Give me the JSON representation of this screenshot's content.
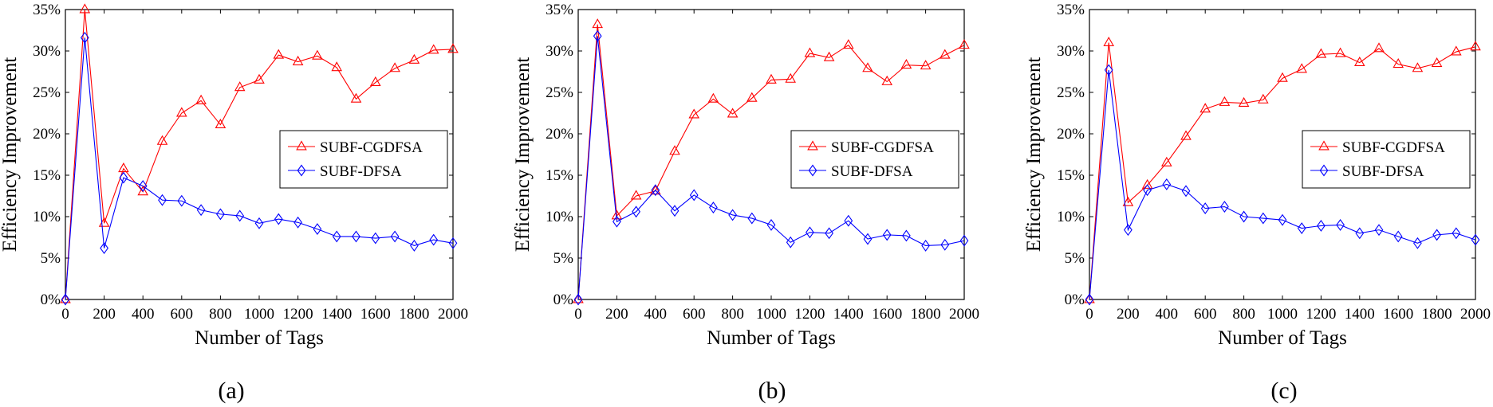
{
  "chart_data": [
    {
      "type": "line",
      "panel_label": "(a)",
      "xlabel": "Number of Tags",
      "ylabel": "Efficiency Improvement",
      "xlim": [
        0,
        2000
      ],
      "ylim": [
        0,
        35
      ],
      "xticks": [
        0,
        200,
        400,
        600,
        800,
        1000,
        1200,
        1400,
        1600,
        1800,
        2000
      ],
      "yticks": [
        0,
        5,
        10,
        15,
        20,
        25,
        30,
        35
      ],
      "ytick_labels": [
        "0%",
        "5%",
        "10%",
        "15%",
        "20%",
        "25%",
        "30%",
        "35%"
      ],
      "grid": false,
      "legend_position": "right-center",
      "x": [
        0,
        100,
        200,
        300,
        400,
        500,
        600,
        700,
        800,
        900,
        1000,
        1100,
        1200,
        1300,
        1400,
        1500,
        1600,
        1700,
        1800,
        1900,
        2000
      ],
      "series": [
        {
          "name": "SUBF-CGDFSA",
          "color": "#ff0000",
          "marker": "triangle",
          "values": [
            0,
            35,
            9.2,
            15.8,
            13.0,
            19.1,
            22.5,
            24.0,
            21.1,
            25.6,
            26.5,
            29.5,
            28.7,
            29.4,
            28.0,
            24.2,
            26.2,
            27.9,
            28.9,
            30.1,
            30.2
          ]
        },
        {
          "name": "SUBF-DFSA",
          "color": "#0000ff",
          "marker": "diamond",
          "values": [
            0,
            31.6,
            6.2,
            14.7,
            13.7,
            12.0,
            11.9,
            10.8,
            10.3,
            10.1,
            9.2,
            9.7,
            9.3,
            8.5,
            7.6,
            7.6,
            7.4,
            7.6,
            6.5,
            7.2,
            6.8
          ]
        }
      ]
    },
    {
      "type": "line",
      "panel_label": "(b)",
      "xlabel": "Number of Tags",
      "ylabel": "Efficiency Improvement",
      "xlim": [
        0,
        2000
      ],
      "ylim": [
        0,
        35
      ],
      "xticks": [
        0,
        200,
        400,
        600,
        800,
        1000,
        1200,
        1400,
        1600,
        1800,
        2000
      ],
      "yticks": [
        0,
        5,
        10,
        15,
        20,
        25,
        30,
        35
      ],
      "ytick_labels": [
        "0%",
        "5%",
        "10%",
        "15%",
        "20%",
        "25%",
        "30%",
        "35%"
      ],
      "grid": false,
      "legend_position": "right-center",
      "x": [
        0,
        100,
        200,
        300,
        400,
        500,
        600,
        700,
        800,
        900,
        1000,
        1100,
        1200,
        1300,
        1400,
        1500,
        1600,
        1700,
        1800,
        1900,
        2000
      ],
      "series": [
        {
          "name": "SUBF-CGDFSA",
          "color": "#ff0000",
          "marker": "triangle",
          "values": [
            0,
            33.2,
            10.1,
            12.5,
            13.1,
            17.9,
            22.3,
            24.2,
            22.4,
            24.3,
            26.5,
            26.6,
            29.7,
            29.2,
            30.7,
            27.9,
            26.3,
            28.3,
            28.2,
            29.5,
            30.7
          ]
        },
        {
          "name": "SUBF-DFSA",
          "color": "#0000ff",
          "marker": "diamond",
          "values": [
            0,
            31.8,
            9.4,
            10.6,
            13.2,
            10.7,
            12.6,
            11.1,
            10.2,
            9.8,
            9.0,
            6.9,
            8.1,
            8.0,
            9.5,
            7.3,
            7.8,
            7.7,
            6.5,
            6.6,
            7.1
          ]
        }
      ]
    },
    {
      "type": "line",
      "panel_label": "(c)",
      "xlabel": "Number of Tags",
      "ylabel": "Efficiency Improvement",
      "xlim": [
        0,
        2000
      ],
      "ylim": [
        0,
        35
      ],
      "xticks": [
        0,
        200,
        400,
        600,
        800,
        1000,
        1200,
        1400,
        1600,
        1800,
        2000
      ],
      "yticks": [
        0,
        5,
        10,
        15,
        20,
        25,
        30,
        35
      ],
      "ytick_labels": [
        "0%",
        "5%",
        "10%",
        "15%",
        "20%",
        "25%",
        "30%",
        "35%"
      ],
      "grid": false,
      "legend_position": "right-center",
      "x": [
        0,
        100,
        200,
        300,
        400,
        500,
        600,
        700,
        800,
        900,
        1000,
        1100,
        1200,
        1300,
        1400,
        1500,
        1600,
        1700,
        1800,
        1900,
        2000
      ],
      "series": [
        {
          "name": "SUBF-CGDFSA",
          "color": "#ff0000",
          "marker": "triangle",
          "values": [
            0,
            31.0,
            11.7,
            13.8,
            16.5,
            19.7,
            23.0,
            23.8,
            23.7,
            24.1,
            26.7,
            27.8,
            29.6,
            29.7,
            28.6,
            30.3,
            28.4,
            27.9,
            28.5,
            29.9,
            30.5
          ]
        },
        {
          "name": "SUBF-DFSA",
          "color": "#0000ff",
          "marker": "diamond",
          "values": [
            0,
            27.7,
            8.4,
            13.2,
            13.9,
            13.1,
            11.0,
            11.2,
            10.0,
            9.8,
            9.6,
            8.6,
            8.9,
            9.0,
            8.0,
            8.4,
            7.6,
            6.8,
            7.8,
            8.0,
            7.2
          ]
        }
      ]
    }
  ]
}
